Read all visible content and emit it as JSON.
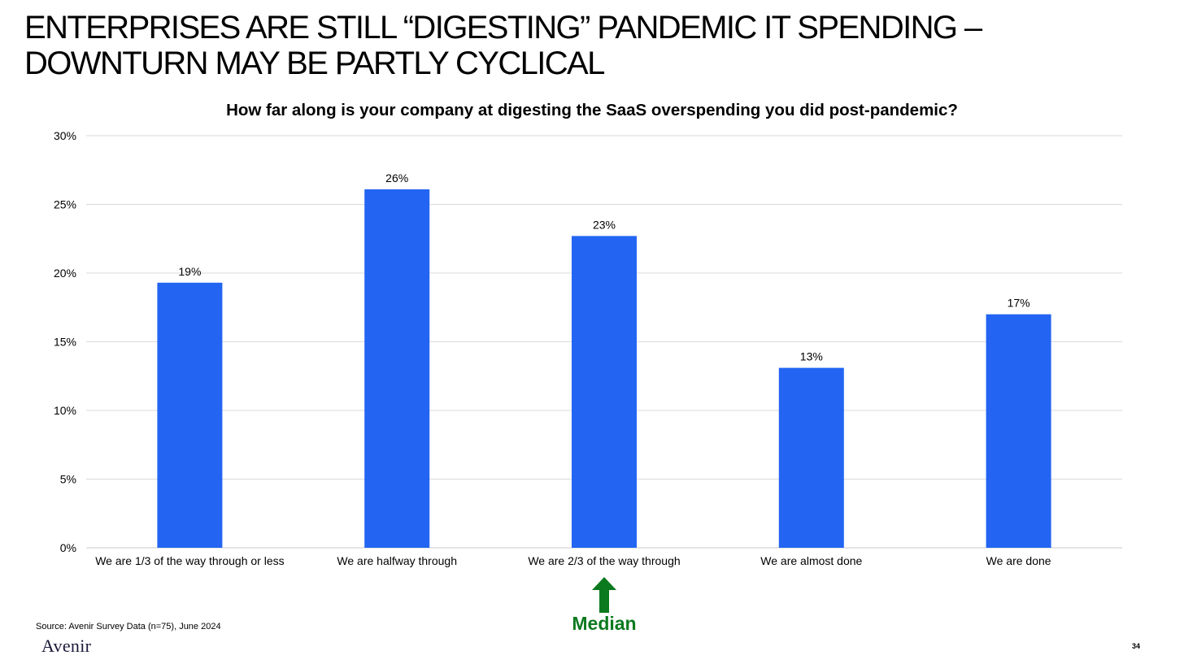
{
  "slide": {
    "title_line1": "ENTERPRISES ARE STILL “DIGESTING” PANDEMIC IT SPENDING –",
    "title_line2": "DOWNTURN MAY BE PARTLY CYCLICAL",
    "source": "Source: Avenir Survey Data (n=75), June 2024",
    "logo_text": "Avenir",
    "page_number": "34"
  },
  "annotation": {
    "median_label": "Median",
    "median_category_index": 2,
    "arrow_color": "#0b7a1e"
  },
  "chart_data": {
    "type": "bar",
    "title": "How far along is your company at digesting the SaaS overspending you did post-pandemic?",
    "categories": [
      "We are 1/3 of the way through or less",
      "We are halfway through",
      "We are 2/3 of the way through",
      "We are almost done",
      "We are done"
    ],
    "values": [
      19.3,
      26.1,
      22.7,
      13.1,
      17.0
    ],
    "data_labels": [
      "19%",
      "26%",
      "23%",
      "13%",
      "17%"
    ],
    "ylim": [
      0,
      30
    ],
    "y_ticks": [
      0,
      5,
      10,
      15,
      20,
      25,
      30
    ],
    "y_tick_labels": [
      "0%",
      "5%",
      "10%",
      "15%",
      "20%",
      "25%",
      "30%"
    ],
    "grid": true,
    "legend": "none",
    "bar_color": "#2365f2",
    "xlabel": "",
    "ylabel": ""
  }
}
